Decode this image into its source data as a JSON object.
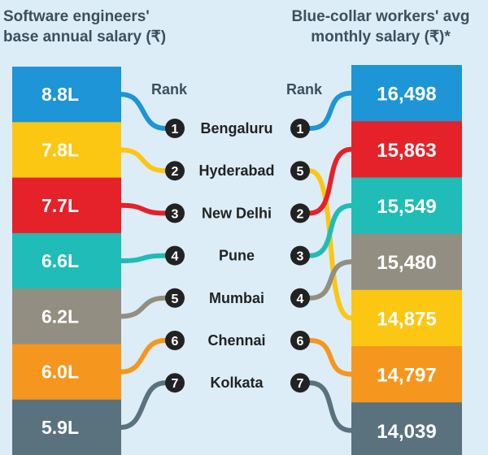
{
  "titles": {
    "left": "Software engineers'\nbase annual salary (₹)",
    "right": "Blue-collar workers' avg\nmonthly salary (₹)*"
  },
  "rank_label": "Rank",
  "colors": {
    "Bengaluru": "#1d95d6",
    "Hyderabad": "#fbc713",
    "New Delhi": "#e52129",
    "Pune": "#1fbcb8",
    "Mumbai": "#928f82",
    "Chennai": "#f5971f",
    "Kolkata": "#5a727e",
    "rank_circle": "#222222",
    "text_dark": "#3d4f5c",
    "background": "#dcedf7"
  },
  "chart_data": {
    "type": "table",
    "cities": [
      "Bengaluru",
      "Hyderabad",
      "New Delhi",
      "Pune",
      "Mumbai",
      "Chennai",
      "Kolkata"
    ],
    "software_engineers": {
      "title": "Software engineers' base annual salary (₹)",
      "values_lakh": [
        8.8,
        7.8,
        7.7,
        6.6,
        6.2,
        6.0,
        5.9
      ],
      "labels": [
        "8.8L",
        "7.8L",
        "7.7L",
        "6.6L",
        "6.2L",
        "6.0L",
        "5.9L"
      ],
      "ranks": [
        1,
        2,
        3,
        4,
        5,
        6,
        7
      ]
    },
    "blue_collar": {
      "title": "Blue-collar workers' avg monthly salary (₹)*",
      "values": [
        16498,
        15863,
        15549,
        15480,
        14875,
        14797,
        14039
      ],
      "labels": [
        "16,498",
        "15,863",
        "15,549",
        "15,480",
        "14,875",
        "14,797",
        "14,039"
      ],
      "order_cities": [
        "Bengaluru",
        "New Delhi",
        "Pune",
        "Mumbai",
        "Hyderabad",
        "Chennai",
        "Kolkata"
      ],
      "ranks_by_city": [
        1,
        5,
        2,
        3,
        4,
        6,
        7
      ]
    }
  }
}
